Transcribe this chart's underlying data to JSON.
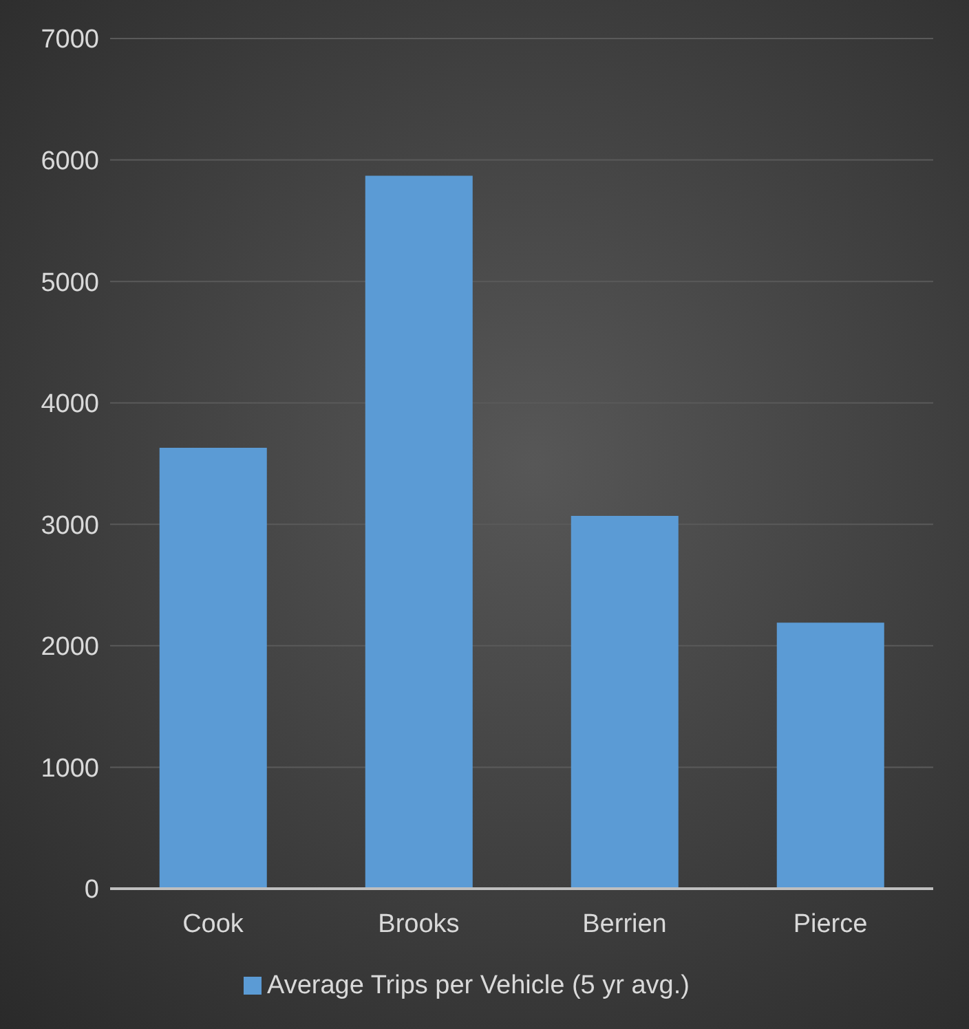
{
  "chart_data": {
    "type": "bar",
    "categories": [
      "Cook",
      "Brooks",
      "Berrien",
      "Pierce"
    ],
    "series": [
      {
        "name": "Average Trips per Vehicle (5 yr avg.)",
        "color": "#5b9bd5",
        "values": [
          3630,
          5870,
          3070,
          2190
        ]
      }
    ],
    "ylim": [
      0,
      7000
    ],
    "yticks": [
      0,
      1000,
      2000,
      3000,
      4000,
      5000,
      6000,
      7000
    ],
    "grid": "y",
    "legend": "bottom"
  }
}
